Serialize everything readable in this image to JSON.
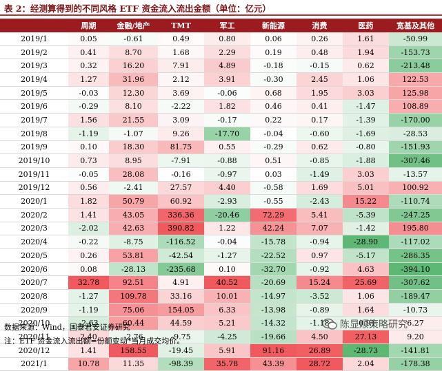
{
  "caption": "表 2：经测算得到的不同风格 ETF 资金流入流出金额（单位：亿元）",
  "headers": [
    "",
    "周期",
    "金融/地产",
    "TMT",
    "军工",
    "新能源",
    "消费",
    "医药",
    "宽基及其他"
  ],
  "rows": [
    {
      "date": "2019/1",
      "v": [
        "0.05",
        "-0.61",
        "0.49",
        "0.80",
        "0.06",
        "0.26",
        "1.61",
        "-50.99"
      ]
    },
    {
      "date": "2019/2",
      "v": [
        "0.41",
        "8.70",
        "1.68",
        "2.29",
        "0.19",
        "0.48",
        "1.94",
        "-153.73"
      ]
    },
    {
      "date": "2019/3",
      "v": [
        "0.32",
        "16.20",
        "7.91",
        "4.89",
        "-0.18",
        "-0.15",
        "0.62",
        "-213.48"
      ]
    },
    {
      "date": "2019/4",
      "v": [
        "1.27",
        "31.96",
        "2.12",
        "3.91",
        "-0.30",
        "2.45",
        "1.06",
        "122.53"
      ]
    },
    {
      "date": "2019/5",
      "v": [
        "-0.03",
        "12.30",
        "3.69",
        "-0.06",
        "0.68",
        "1.95",
        "3.03",
        "125.98"
      ]
    },
    {
      "date": "2019/6",
      "v": [
        "-0.29",
        "8.10",
        "-2.22",
        "1.82",
        "0.46",
        "0.41",
        "-1.47",
        "108.89"
      ]
    },
    {
      "date": "2019/7",
      "v": [
        "1.56",
        "21.55",
        "3.09",
        "-0.17",
        "0.22",
        "0.17",
        "-1.39",
        "-170.00"
      ]
    },
    {
      "date": "2019/8",
      "v": [
        "-1.19",
        "-1.07",
        "9.26",
        "-17.70",
        "-0.04",
        "-0.60",
        "-1.69",
        "-28.53"
      ]
    },
    {
      "date": "2019/9",
      "v": [
        "0.10",
        "18.30",
        "81.75",
        "0.55",
        "-0.29",
        "0.62",
        "-0.80",
        "-151.93"
      ]
    },
    {
      "date": "2019/10",
      "v": [
        "0.73",
        "8.95",
        "-7.91",
        "-0.88",
        "0.51",
        "-0.85",
        "-1.88",
        "-307.46"
      ]
    },
    {
      "date": "2019/11",
      "v": [
        "-0.05",
        "28.08",
        "-0.16",
        "-0.97",
        "0.03",
        "-1.49",
        "3.03",
        "-13.57"
      ]
    },
    {
      "date": "2019/12",
      "v": [
        "0.56",
        "-2.41",
        "27.57",
        "4.40",
        "-0.58",
        "1.69",
        "5.01",
        "100.92"
      ]
    },
    {
      "date": "2020/1",
      "v": [
        "1.82",
        "50.79",
        "60.92",
        "-2.93",
        "-0.55",
        "-2.43",
        "15.22",
        "-110.74"
      ]
    },
    {
      "date": "2020/2",
      "v": [
        "1.41",
        "43.05",
        "336.36",
        "-20.46",
        "72.29",
        "5.41",
        "-5.39",
        "-247.25"
      ]
    },
    {
      "date": "2020/3",
      "v": [
        "-2.02",
        "42.63",
        "390.82",
        "1.22",
        "42.24",
        "7.07",
        "-1.42",
        "195.80"
      ]
    },
    {
      "date": "2020/4",
      "v": [
        "-0.22",
        "-8.75",
        "-116.52",
        "-0.04",
        "-15.78",
        "-0.94",
        "-28.90",
        "-117.02"
      ]
    },
    {
      "date": "2020/5",
      "v": [
        "0.26",
        "53.81",
        "-42.54",
        "-1.27",
        "-22.52",
        "0.97",
        "-5.17",
        "-286.35"
      ]
    },
    {
      "date": "2020/6",
      "v": [
        "0.08",
        "-28.13",
        "-235.68",
        "0.10",
        "-32.70",
        "-0.92",
        "4.63",
        "-394.10"
      ]
    },
    {
      "date": "2020/7",
      "v": [
        "32.78",
        "92.51",
        "4.91",
        "40.52",
        "-20.69",
        "15.24",
        "25.69",
        "-307.62"
      ]
    },
    {
      "date": "2020/8",
      "v": [
        "-1.27",
        "109.78",
        "33.16",
        "10.01",
        "-14.97",
        "-3.52",
        "1.06",
        "-189.47"
      ]
    },
    {
      "date": "2020/9",
      "v": [
        "-1.19",
        "75.06",
        "154.05",
        "6.33",
        "-13.98",
        "-0.89",
        "1.64",
        "-10.73"
      ]
    },
    {
      "date": "2020/10",
      "v": [
        "-2.63",
        "60.44",
        "44.59",
        "5.21",
        "-14.32",
        "-1.18",
        "-0.91",
        "6.27"
      ]
    },
    {
      "date": "2020/11",
      "v": [
        "2.40",
        "-2.76",
        "-9.75",
        "-4.25",
        "-19.66",
        "4.50",
        "27.13",
        "9.20"
      ]
    },
    {
      "date": "2020/12",
      "v": [
        "1.41",
        "158.55",
        "-19.45",
        "5.91",
        "91.16",
        "26.89",
        "-28.73",
        "-141.81"
      ]
    },
    {
      "date": "2021/1",
      "v": [
        "10.78",
        "11.35",
        "-98.39",
        "35.78",
        "43.39",
        "28.72",
        "2.04",
        "-178.38"
      ]
    }
  ],
  "colors": {
    "header_bg": "#9b1b1f",
    "positive_max": "#f0595d",
    "negative_max": "#5cb874"
  },
  "source": "数据来源：Wind，国泰君安证券研究",
  "note": "注：ETF 资金流入流出额=份额变动*当月成交均价。",
  "watermark": "陈显顺策略研究"
}
